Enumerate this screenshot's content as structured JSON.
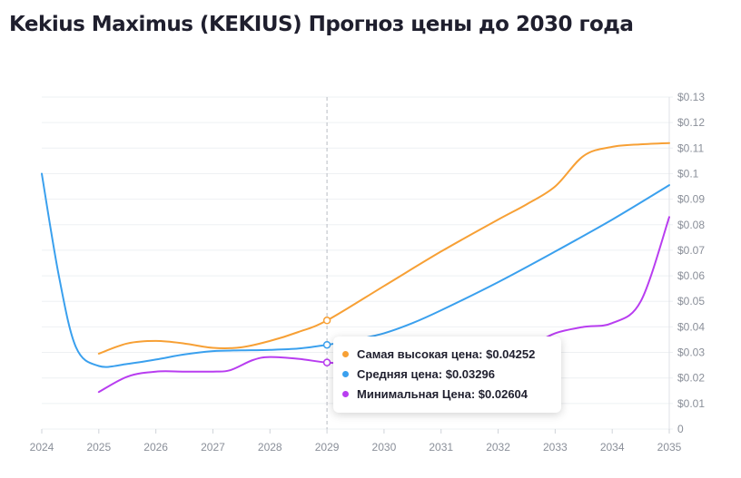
{
  "title": "Kekius Maximus (KEKIUS) Прогноз цены до 2030 года",
  "tooltip": {
    "rows": [
      {
        "label": "Самая высокая цена:",
        "value": "$0.04252",
        "color": "#f7a035"
      },
      {
        "label": "Средняя цена:",
        "value": "$0.03296",
        "color": "#3aa0ee"
      },
      {
        "label": "Минимальная Цена:",
        "value": "$0.02604",
        "color": "#b83df0"
      }
    ]
  },
  "chart_data": {
    "type": "line",
    "x": [
      2024,
      2025,
      2026,
      2027,
      2028,
      2029,
      2030,
      2031,
      2032,
      2033,
      2034,
      2035
    ],
    "x_ticks": [
      "2024",
      "2025",
      "2026",
      "2027",
      "2028",
      "2029",
      "2030",
      "2031",
      "2032",
      "2033",
      "2034",
      "2035"
    ],
    "y_ticks": [
      "0",
      "$0.01",
      "$0.02",
      "$0.03",
      "$0.04",
      "$0.05",
      "$0.06",
      "$0.07",
      "$0.08",
      "$0.09",
      "$0.1",
      "$0.11",
      "$0.12",
      "$0.13"
    ],
    "ylim": [
      0,
      0.13
    ],
    "y_axis_side": "right",
    "hover_x": 2029,
    "series": [
      {
        "name": "Самая высокая цена",
        "color": "#f7a035",
        "points": [
          [
            2025,
            0.0295
          ],
          [
            2025.5,
            0.0335
          ],
          [
            2026,
            0.0345
          ],
          [
            2026.5,
            0.0335
          ],
          [
            2027,
            0.0318
          ],
          [
            2027.5,
            0.032
          ],
          [
            2028,
            0.0345
          ],
          [
            2028.5,
            0.038
          ],
          [
            2029,
            0.04252
          ],
          [
            2030,
            0.056
          ],
          [
            2031,
            0.0695
          ],
          [
            2032,
            0.082
          ],
          [
            2032.5,
            0.088
          ],
          [
            2033,
            0.095
          ],
          [
            2033.5,
            0.107
          ],
          [
            2034,
            0.1105
          ],
          [
            2034.5,
            0.1115
          ],
          [
            2035,
            0.112
          ]
        ]
      },
      {
        "name": "Средняя цена",
        "color": "#3aa0ee",
        "points": [
          [
            2024,
            0.1
          ],
          [
            2024.3,
            0.06
          ],
          [
            2024.6,
            0.032
          ],
          [
            2025,
            0.0247
          ],
          [
            2025.5,
            0.0255
          ],
          [
            2026,
            0.0272
          ],
          [
            2026.5,
            0.0292
          ],
          [
            2027,
            0.0305
          ],
          [
            2027.5,
            0.0308
          ],
          [
            2028,
            0.031
          ],
          [
            2028.5,
            0.0315
          ],
          [
            2029,
            0.03296
          ],
          [
            2029.5,
            0.035
          ],
          [
            2030,
            0.0375
          ],
          [
            2030.5,
            0.0415
          ],
          [
            2031,
            0.0465
          ],
          [
            2032,
            0.0575
          ],
          [
            2033,
            0.0695
          ],
          [
            2034,
            0.082
          ],
          [
            2035,
            0.0955
          ]
        ]
      },
      {
        "name": "Минимальная Цена",
        "color": "#b83df0",
        "points": [
          [
            2025,
            0.0145
          ],
          [
            2025.5,
            0.0205
          ],
          [
            2026,
            0.0225
          ],
          [
            2026.5,
            0.0225
          ],
          [
            2027,
            0.0225
          ],
          [
            2027.3,
            0.023
          ],
          [
            2027.7,
            0.027
          ],
          [
            2028,
            0.0282
          ],
          [
            2028.5,
            0.0275
          ],
          [
            2029,
            0.02604
          ],
          [
            2029.5,
            0.0258
          ],
          [
            2030,
            0.0258
          ],
          [
            2031,
            0.0262
          ],
          [
            2032,
            0.0285
          ],
          [
            2032.5,
            0.032
          ],
          [
            2033,
            0.0375
          ],
          [
            2033.5,
            0.04
          ],
          [
            2034,
            0.0415
          ],
          [
            2034.5,
            0.05
          ],
          [
            2035,
            0.083
          ]
        ]
      }
    ]
  }
}
